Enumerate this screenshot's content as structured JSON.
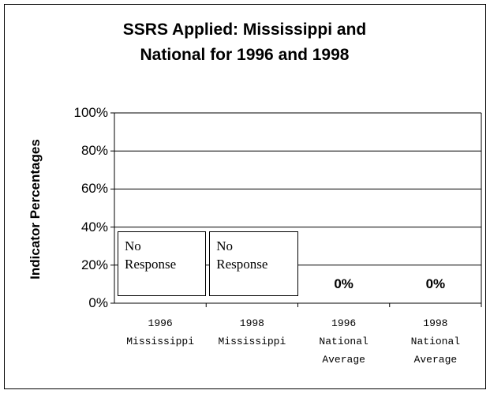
{
  "chart_data": {
    "type": "bar",
    "title": "SSRS Applied: Mississippi and National for 1996 and 1998",
    "ylabel": "Indicator Percentages",
    "categories": [
      "1996 Mississippi",
      "1998 Mississippi",
      "1996 National Average",
      "1998 National Average"
    ],
    "values": [
      null,
      null,
      0,
      0
    ],
    "value_labels": [
      null,
      null,
      "0%",
      "0%"
    ],
    "annotations": [
      "No Response",
      "No Response",
      null,
      null
    ],
    "ylim": [
      0,
      100
    ],
    "yticks": [
      {
        "value": 0,
        "label": "0%"
      },
      {
        "value": 20,
        "label": "20%"
      },
      {
        "value": 40,
        "label": "40%"
      },
      {
        "value": 60,
        "label": "60%"
      },
      {
        "value": 80,
        "label": "80%"
      },
      {
        "value": 100,
        "label": "100%"
      }
    ],
    "grid": true
  }
}
